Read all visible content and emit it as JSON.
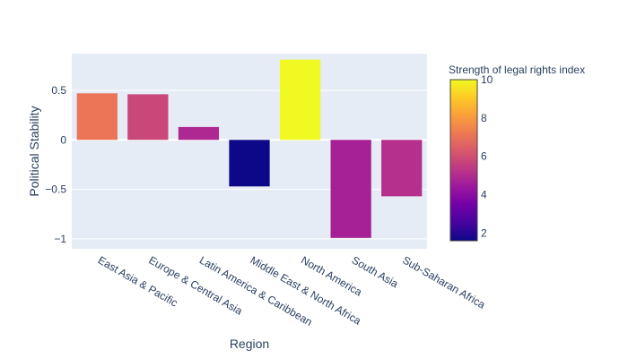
{
  "chart_data": {
    "type": "bar",
    "categories": [
      "East Asia & Pacific",
      "Europe & Central Asia",
      "Latin America & Caribbean",
      "Middle East & North Africa",
      "North America",
      "South Asia",
      "Sub-Saharan Africa"
    ],
    "values": [
      0.47,
      0.46,
      0.13,
      -0.47,
      0.81,
      -0.99,
      -0.57
    ],
    "color_values": [
      7.1,
      5.8,
      4.9,
      1.6,
      10.0,
      4.7,
      5.1
    ],
    "xlabel": "Region",
    "ylabel": "Political Stability",
    "ylim": [
      -1.1,
      0.87
    ],
    "yticks": [
      -1,
      -0.5,
      0,
      0.5
    ],
    "ytick_labels": [
      "−1",
      "−0.5",
      "0",
      "0.5"
    ],
    "grid": true,
    "colorbar": {
      "title": "Strength of legal rights index",
      "range": [
        1.6,
        10
      ],
      "ticks": [
        2,
        4,
        6,
        8,
        10
      ],
      "colorscale": [
        "#0d0887",
        "#46039f",
        "#7201a8",
        "#9c179e",
        "#bd3786",
        "#d8576b",
        "#ed7953",
        "#fb9f3a",
        "#fdca26",
        "#f0f921"
      ]
    },
    "plot_background": "#e5ecf6"
  }
}
